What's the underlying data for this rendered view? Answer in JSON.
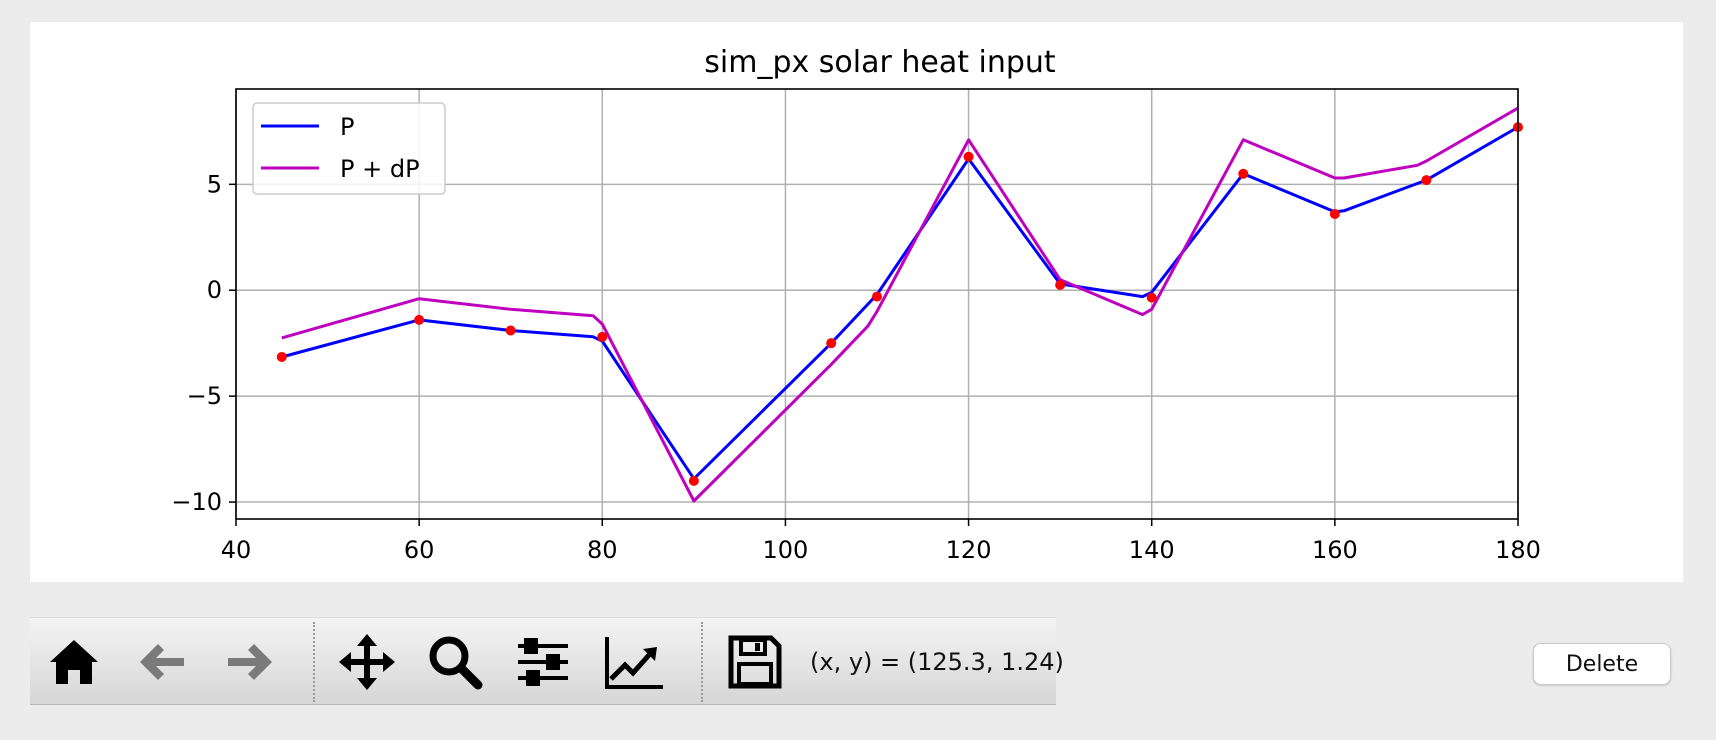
{
  "chart_data": {
    "type": "line",
    "title": "sim_px solar heat input",
    "xlabel": "",
    "ylabel": "",
    "xlim": [
      40,
      180
    ],
    "ylim": [
      -10.8,
      9.5
    ],
    "xticks": [
      40,
      60,
      80,
      100,
      120,
      140,
      160,
      180
    ],
    "yticks": [
      -10,
      -5,
      0,
      5
    ],
    "grid": true,
    "legend_placement": "top-left",
    "series": [
      {
        "name": "P",
        "color": "#0000ff",
        "x": [
          45,
          60,
          70,
          79,
          80,
          90,
          105,
          110,
          120,
          130,
          139,
          140,
          150,
          160,
          161,
          170,
          180
        ],
        "y": [
          -3.15,
          -1.4,
          -1.9,
          -2.2,
          -2.4,
          -8.9,
          -2.5,
          -0.2,
          6.2,
          0.3,
          -0.3,
          -0.1,
          5.5,
          3.7,
          3.75,
          5.2,
          7.7
        ]
      },
      {
        "name": "P + dP",
        "color": "#bf00bf",
        "x": [
          45,
          60,
          70,
          79,
          80,
          90,
          105,
          109,
          110,
          120,
          130,
          139,
          140,
          150,
          160,
          161,
          169,
          170,
          180
        ],
        "y": [
          -2.25,
          -0.4,
          -0.9,
          -1.2,
          -1.6,
          -9.95,
          -3.5,
          -1.7,
          -1.0,
          7.1,
          0.5,
          -1.15,
          -0.9,
          7.1,
          5.3,
          5.3,
          5.9,
          6.1,
          8.6
        ]
      }
    ],
    "points": {
      "color": "#ff0000",
      "x": [
        45,
        60,
        70,
        80,
        90,
        105,
        110,
        120,
        130,
        140,
        150,
        160,
        170,
        180
      ],
      "y": [
        -3.15,
        -1.4,
        -1.9,
        -2.2,
        -9.0,
        -2.5,
        -0.3,
        6.3,
        0.25,
        -0.35,
        5.5,
        3.6,
        5.2,
        7.7
      ]
    }
  },
  "toolbar": {
    "buttons": [
      {
        "name": "home-button",
        "icon": "home-icon"
      },
      {
        "name": "back-button",
        "icon": "arrow-left-icon"
      },
      {
        "name": "forward-button",
        "icon": "arrow-right-icon"
      },
      {
        "name": "pan-button",
        "icon": "move-icon"
      },
      {
        "name": "zoom-button",
        "icon": "magnifier-icon"
      },
      {
        "name": "configure-subplots-button",
        "icon": "sliders-icon"
      },
      {
        "name": "edit-axes-button",
        "icon": "chart-line-icon"
      },
      {
        "name": "save-button",
        "icon": "floppy-disk-icon"
      }
    ],
    "coordinates": "(x, y) = (125.3, 1.24)"
  },
  "delete_label": "Delete"
}
